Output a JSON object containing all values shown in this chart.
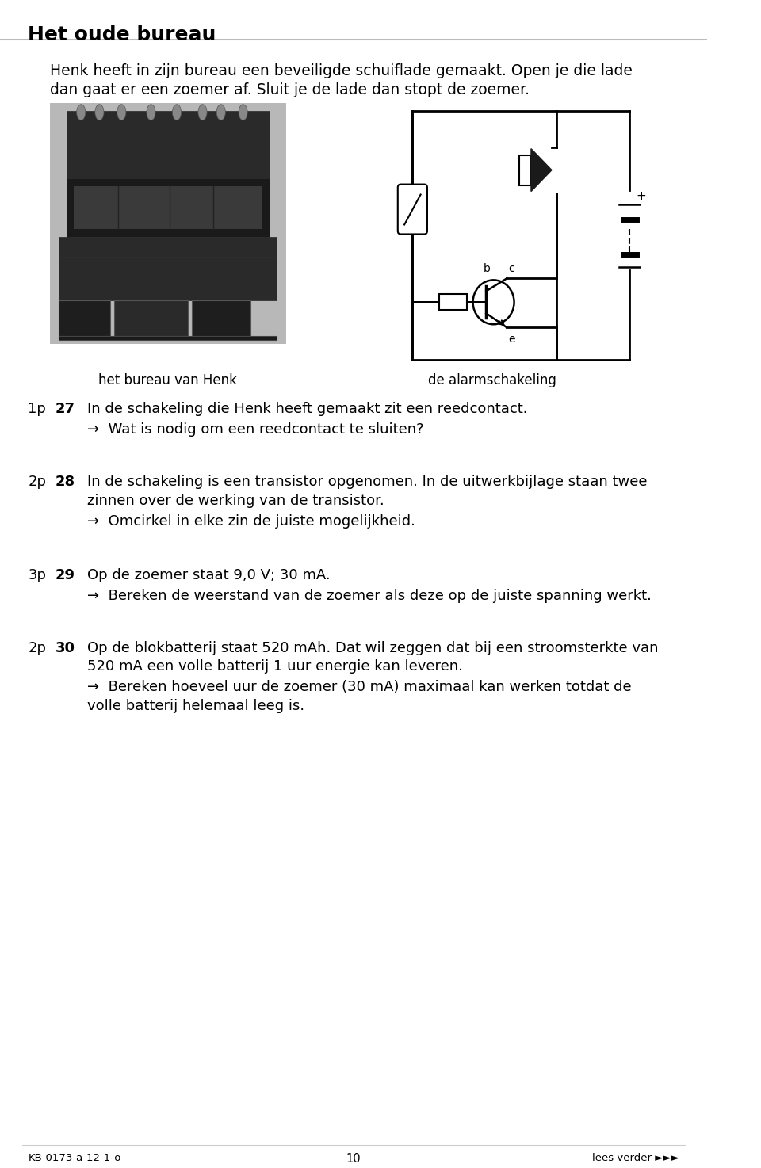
{
  "title": "Het oude bureau",
  "title_fontsize": 18,
  "bg_color": "#ffffff",
  "text_color": "#000000",
  "header_line_color": "#bbbbbb",
  "intro_text_line1": "Henk heeft in zijn bureau een beveiligde schuiflade gemaakt. Open je die lade",
  "intro_text_line2": "dan gaat er een zoemer af. Sluit je de lade dan stopt de zoemer.",
  "caption_left": "het bureau van Henk",
  "caption_right": "de alarmschakeling",
  "questions": [
    {
      "points": "1p",
      "number": "27",
      "main_text": "In de schakeling die Henk heeft gemaakt zit een reedcontact.",
      "arrow_text": "Wat is nodig om een reedcontact te sluiten?"
    },
    {
      "points": "2p",
      "number": "28",
      "main_text_line1": "In de schakeling is een transistor opgenomen. In de uitwerkbijlage staan twee",
      "main_text_line2": "zinnen over de werking van de transistor.",
      "arrow_text": "Omcirkel in elke zin de juiste mogelijkheid."
    },
    {
      "points": "3p",
      "number": "29",
      "main_text": "Op de zoemer staat 9,0 V; 30 mA.",
      "arrow_text": "Bereken de weerstand van de zoemer als deze op de juiste spanning werkt."
    },
    {
      "points": "2p",
      "number": "30",
      "main_text_line1": "Op de blokbatterij staat 520 mAh. Dat wil zeggen dat bij een stroomsterkte van",
      "main_text_line2": "520 mA een volle batterij 1 uur energie kan leveren.",
      "arrow_text_line1": "Bereken hoeveel uur de zoemer (30 mA) maximaal kan werken totdat de",
      "arrow_text_line2": "volle batterij helemaal leeg is."
    }
  ],
  "footer_left": "KB-0173-a-12-1-o",
  "footer_center": "10",
  "footer_right": "lees verder ►►►"
}
